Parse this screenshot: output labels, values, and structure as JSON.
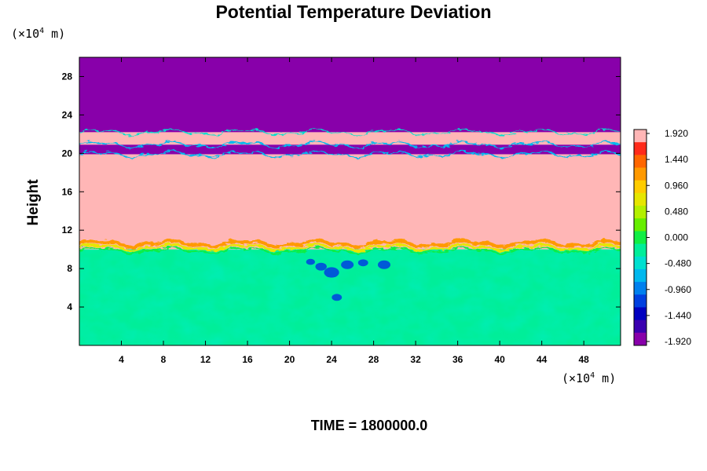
{
  "chart_data": {
    "type": "heatmap",
    "title": "Potential Temperature Deviation",
    "ylabel": "Height",
    "x_unit_label": "(×10⁴ m)",
    "y_unit_label": "(×10⁴ m)",
    "xlim": [
      0,
      51.5
    ],
    "ylim": [
      0,
      30
    ],
    "x_ticks": [
      4,
      8,
      12,
      16,
      20,
      24,
      28,
      32,
      36,
      40,
      44,
      48
    ],
    "y_ticks": [
      4,
      8,
      12,
      16,
      20,
      24,
      28
    ],
    "time_label": "TIME = 1800000.0",
    "colorbar": {
      "min": -1.92,
      "max": 1.92,
      "labels": [
        "1.920",
        "1.440",
        "0.960",
        "0.480",
        "0.000",
        "-0.480",
        "-0.960",
        "-1.440",
        "-1.920"
      ],
      "colors": [
        "#ffb6b6",
        "#ff2a1a",
        "#ff6600",
        "#ff9900",
        "#ffcc00",
        "#e6e600",
        "#b3f000",
        "#66ee00",
        "#11ee44",
        "#00ee99",
        "#00e0d0",
        "#00b8ee",
        "#0080ee",
        "#0040e0",
        "#0000c0",
        "#3a00b0",
        "#8800aa"
      ]
    },
    "regions": [
      {
        "name": "upper-layer",
        "y_from": 22.2,
        "y_to": 30,
        "value": -1.92
      },
      {
        "name": "thin-warm-band",
        "y_from": 20.9,
        "y_to": 22.2,
        "value": 1.92
      },
      {
        "name": "thin-cold-band",
        "y_from": 19.9,
        "y_to": 20.9,
        "value": -1.92
      },
      {
        "name": "warm-layer",
        "y_from": 10.0,
        "y_to": 19.9,
        "value": 1.92
      },
      {
        "name": "mixed-layer",
        "y_from": 0,
        "y_to": 10.0,
        "value": -0.2
      }
    ]
  }
}
